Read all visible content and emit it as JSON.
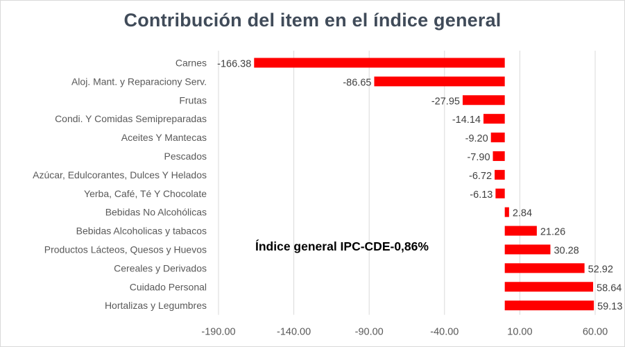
{
  "chart_data": {
    "type": "bar",
    "orientation": "horizontal",
    "title": "Contribución del item en el índice general",
    "categories": [
      "Carnes",
      "Aloj. Mant. y Reparaciony Serv.",
      "Frutas",
      "Condi. Y Comidas Semipreparadas",
      "Aceites Y Mantecas",
      "Pescados",
      "Azúcar, Edulcorantes, Dulces Y Helados",
      "Yerba, Café, Té Y Chocolate",
      "Bebidas No Alcohólicas",
      "Bebidas Alcoholicas y tabacos",
      "Productos Lácteos, Quesos y Huevos",
      "Cereales y Derivados",
      "Cuidado Personal",
      "Hortalizas y Legumbres"
    ],
    "values": [
      -166.38,
      -86.65,
      -27.95,
      -14.14,
      -9.2,
      -7.9,
      -6.72,
      -6.13,
      2.84,
      21.26,
      30.28,
      52.92,
      58.64,
      59.13
    ],
    "value_labels": [
      "-166.38",
      "-86.65",
      "-27.95",
      "-14.14",
      "-9.20",
      "-7.90",
      "-6.72",
      "-6.13",
      "2.84",
      "21.26",
      "30.28",
      "52.92",
      "58.64",
      "59.13"
    ],
    "xlim": [
      -190,
      60
    ],
    "xticks": [
      -190,
      -140,
      -90,
      -40,
      10,
      60
    ],
    "xtick_labels": [
      "-190.00",
      "-140.00",
      "-90.00",
      "-40.00",
      "10.00",
      "60.00"
    ],
    "xlabel": "",
    "ylabel": "",
    "grid": "vertical",
    "legend": "none",
    "bar_color": "#ff0000",
    "annotation": "Índice general IPC-CDE-0,86%"
  }
}
